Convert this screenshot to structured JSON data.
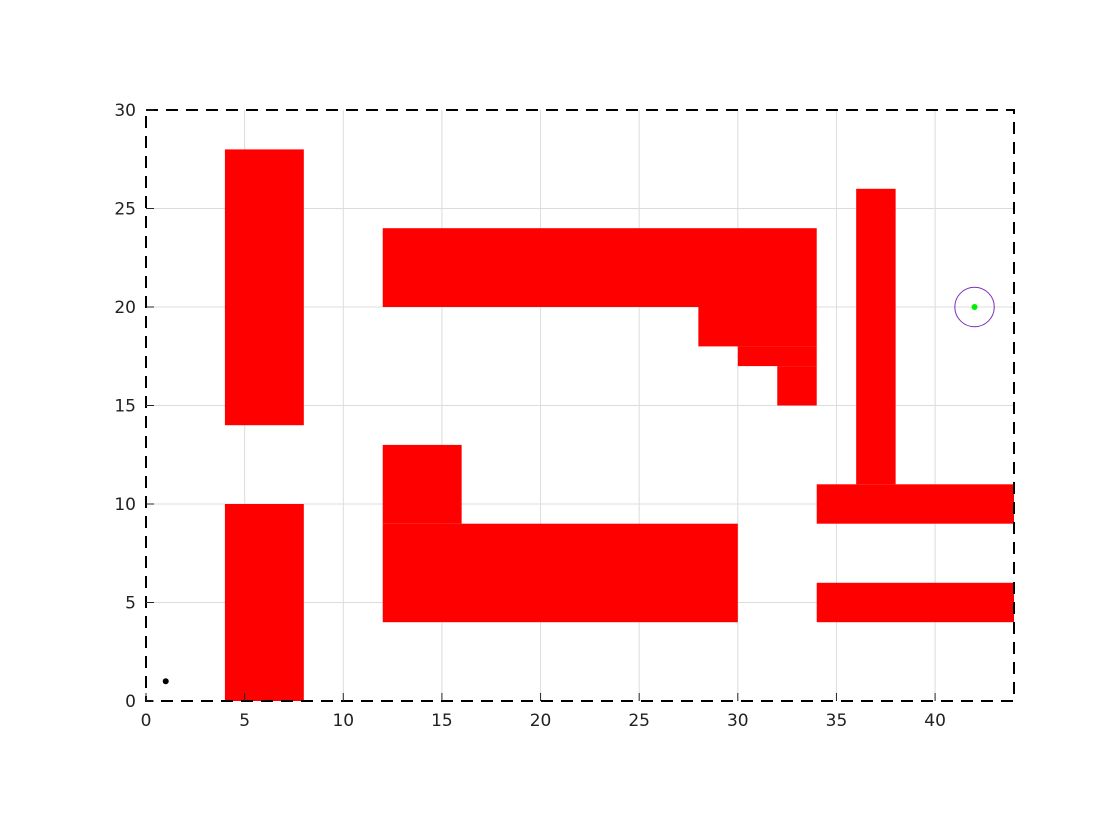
{
  "chart_data": {
    "type": "scatter",
    "title": "",
    "xlabel": "",
    "ylabel": "",
    "xlim": [
      0,
      44
    ],
    "ylim": [
      0,
      30
    ],
    "x_ticks": [
      0,
      5,
      10,
      15,
      20,
      25,
      30,
      35,
      40
    ],
    "y_ticks": [
      0,
      5,
      10,
      15,
      20,
      25,
      30
    ],
    "grid": true,
    "legend": "none",
    "boundary_style": "dashed",
    "obstacles": [
      {
        "name": "wall-left-upper",
        "x": [
          4,
          8
        ],
        "y": [
          14,
          28
        ]
      },
      {
        "name": "wall-left-lower",
        "x": [
          4,
          8
        ],
        "y": [
          0,
          10
        ]
      },
      {
        "name": "top-bar",
        "x": [
          12,
          34
        ],
        "y": [
          20,
          24
        ]
      },
      {
        "name": "top-step-1",
        "x": [
          28,
          34
        ],
        "y": [
          18,
          20
        ]
      },
      {
        "name": "top-step-2",
        "x": [
          30,
          34
        ],
        "y": [
          17,
          18
        ]
      },
      {
        "name": "top-step-3",
        "x": [
          32,
          34
        ],
        "y": [
          15,
          17
        ]
      },
      {
        "name": "bottom-left-block",
        "x": [
          12,
          16
        ],
        "y": [
          9,
          13
        ]
      },
      {
        "name": "bottom-bar",
        "x": [
          12,
          30
        ],
        "y": [
          4,
          9
        ]
      },
      {
        "name": "right-pillar",
        "x": [
          36,
          38
        ],
        "y": [
          11,
          26
        ]
      },
      {
        "name": "right-bar-upper",
        "x": [
          34,
          44
        ],
        "y": [
          9,
          11
        ]
      },
      {
        "name": "right-bar-lower",
        "x": [
          34,
          44
        ],
        "y": [
          4,
          6
        ]
      }
    ],
    "points": [
      {
        "name": "start",
        "x": 1,
        "y": 1,
        "color": "#000000"
      },
      {
        "name": "goal",
        "x": 42,
        "y": 20,
        "color": "#00ee00"
      }
    ],
    "goal_region": {
      "x": 42,
      "y": 20,
      "radius": 1,
      "color": "#7b2fbe"
    },
    "obstacle_color": "#ff0000"
  }
}
